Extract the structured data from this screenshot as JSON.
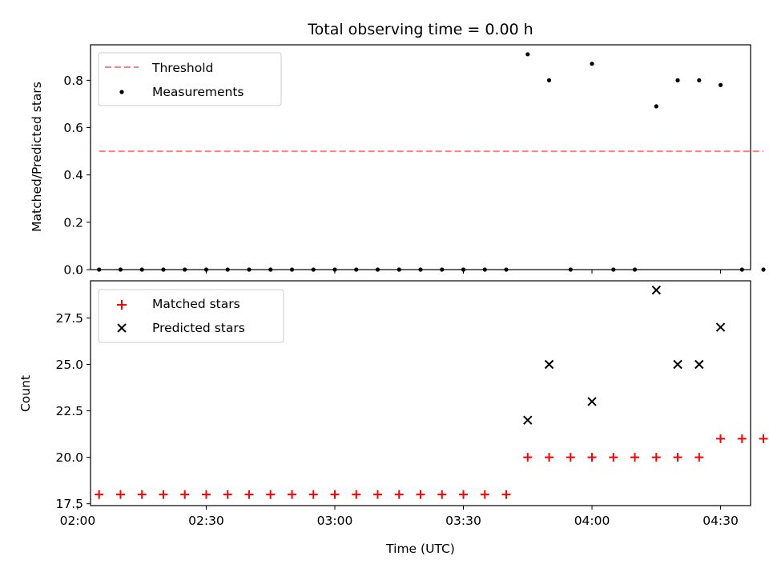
{
  "chart_data": [
    {
      "type": "scatter",
      "title": "Total observing time = 0.00 h",
      "xlabel": "",
      "ylabel": "Matched/Predicted stars",
      "xlim": [
        "02:03",
        "04:37"
      ],
      "ylim": [
        0,
        0.95
      ],
      "y_ticks": [
        "0.0",
        "0.2",
        "0.4",
        "0.6",
        "0.8"
      ],
      "legend_position": "top-left",
      "threshold": {
        "name": "Threshold",
        "value": 0.5,
        "x_start": "02:05",
        "x_end": "04:40",
        "color": "#ff7f7f",
        "style": "dashed"
      },
      "series": [
        {
          "name": "Measurements",
          "color": "#000000",
          "x": [
            "02:05",
            "02:10",
            "02:15",
            "02:20",
            "02:25",
            "02:30",
            "02:35",
            "02:40",
            "02:45",
            "02:50",
            "02:55",
            "03:00",
            "03:05",
            "03:10",
            "03:15",
            "03:20",
            "03:25",
            "03:30",
            "03:35",
            "03:40",
            "03:45",
            "03:50",
            "03:55",
            "04:00",
            "04:05",
            "04:10",
            "04:15",
            "04:20",
            "04:25",
            "04:30",
            "04:35",
            "04:40"
          ],
          "y": [
            0,
            0,
            0,
            0,
            0,
            0,
            0,
            0,
            0,
            0,
            0,
            0,
            0,
            0,
            0,
            0,
            0,
            0,
            0,
            0,
            0.91,
            0.8,
            0,
            0.87,
            0,
            0,
            0.69,
            0.8,
            0.8,
            0.78,
            0,
            0
          ]
        }
      ]
    },
    {
      "type": "scatter",
      "title": "",
      "xlabel": "Time (UTC)",
      "ylabel": "Count",
      "xlim": [
        "02:03",
        "04:37"
      ],
      "ylim": [
        17.4,
        29.5
      ],
      "x_ticks": [
        "02:00",
        "02:30",
        "03:00",
        "03:30",
        "04:00",
        "04:30"
      ],
      "y_ticks": [
        "17.5",
        "20.0",
        "22.5",
        "25.0",
        "27.5"
      ],
      "legend_position": "top-left",
      "series": [
        {
          "name": "Matched stars",
          "marker": "plus",
          "color": "#ff0000",
          "x": [
            "02:05",
            "02:10",
            "02:15",
            "02:20",
            "02:25",
            "02:30",
            "02:35",
            "02:40",
            "02:45",
            "02:50",
            "02:55",
            "03:00",
            "03:05",
            "03:10",
            "03:15",
            "03:20",
            "03:25",
            "03:30",
            "03:35",
            "03:40",
            "03:45",
            "03:50",
            "03:55",
            "04:00",
            "04:05",
            "04:10",
            "04:15",
            "04:20",
            "04:25",
            "04:30",
            "04:35",
            "04:40"
          ],
          "y": [
            18,
            18,
            18,
            18,
            18,
            18,
            18,
            18,
            18,
            18,
            18,
            18,
            18,
            18,
            18,
            18,
            18,
            18,
            18,
            18,
            20,
            20,
            20,
            20,
            20,
            20,
            20,
            20,
            20,
            21,
            21,
            21
          ]
        },
        {
          "name": "Predicted stars",
          "marker": "x",
          "color": "#000000",
          "x": [
            "03:45",
            "03:50",
            "04:00",
            "04:15",
            "04:20",
            "04:25",
            "04:30"
          ],
          "y": [
            22,
            25,
            23,
            29,
            25,
            25,
            27
          ]
        }
      ]
    }
  ]
}
